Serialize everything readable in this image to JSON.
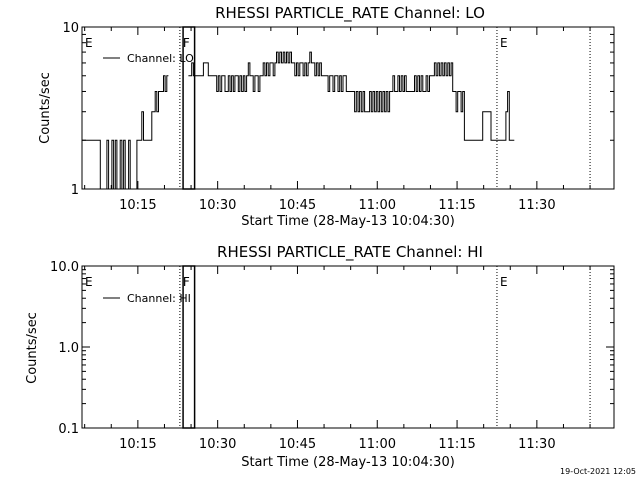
{
  "chart_data": [
    {
      "type": "line",
      "title": "RHESSI PARTICLE_RATE Channel: LO",
      "xlabel": "Start Time (28-May-13 10:04:30)",
      "ylabel": "Counts/sec",
      "yscale": "log",
      "ylim": [
        1,
        10
      ],
      "ytick_labels": [
        "1",
        "10"
      ],
      "xlim": [
        "10:04:30",
        "11:44:30"
      ],
      "xtick_labels": [
        "10:15",
        "10:30",
        "10:45",
        "11:00",
        "11:15",
        "11:30"
      ],
      "legend": {
        "placement": "top-left",
        "entries": [
          "Channel: LO"
        ]
      },
      "markers": [
        {
          "label": "E",
          "time": "10:04:30",
          "style": "dotted"
        },
        {
          "label": "F",
          "time": "10:22:54",
          "style": "dotted"
        },
        {
          "label": "E",
          "time": "11:22:30",
          "style": "dotted"
        },
        {
          "label": "",
          "time": "11:40:00",
          "style": "dotted"
        }
      ],
      "saa_box": {
        "start": "10:23:30",
        "end": "10:25:40"
      },
      "series": [
        {
          "name": "Channel: LO",
          "x_start": "10:04:30",
          "step_seconds": 18.75,
          "values": [
            2,
            2,
            2,
            2,
            2,
            2,
            2,
            2,
            2,
            2,
            2,
            1,
            1,
            1,
            1,
            2,
            1,
            1,
            2,
            1,
            2,
            1,
            1,
            2,
            1,
            2,
            1,
            1,
            2,
            1,
            1,
            1,
            1,
            2,
            2,
            2,
            3,
            2,
            2,
            2,
            2,
            2,
            3,
            3,
            4,
            3,
            4,
            4,
            4,
            5,
            4,
            5,
            0,
            0,
            0,
            0,
            0,
            0,
            0,
            0,
            0,
            0,
            0,
            0,
            5,
            5,
            6,
            5,
            5,
            5,
            5,
            5,
            5,
            6,
            6,
            6,
            5,
            5,
            5,
            5,
            5,
            4,
            5,
            4,
            5,
            5,
            4,
            4,
            5,
            4,
            5,
            4,
            5,
            5,
            4,
            5,
            4,
            5,
            4,
            5,
            6,
            5,
            5,
            4,
            5,
            5,
            4,
            5,
            5,
            6,
            5,
            6,
            5,
            6,
            6,
            5,
            6,
            7,
            6,
            7,
            6,
            7,
            6,
            7,
            6,
            7,
            6,
            6,
            5,
            6,
            5,
            6,
            6,
            5,
            6,
            5,
            6,
            7,
            6,
            6,
            5,
            6,
            5,
            6,
            5,
            5,
            5,
            5,
            4,
            5,
            5,
            4,
            5,
            5,
            4,
            5,
            4,
            5,
            5,
            4,
            4,
            4,
            4,
            4,
            3,
            4,
            3,
            4,
            3,
            4,
            3,
            3,
            3,
            4,
            3,
            4,
            3,
            4,
            3,
            4,
            3,
            4,
            3,
            4,
            3,
            4,
            4,
            5,
            4,
            4,
            5,
            4,
            5,
            4,
            5,
            4,
            4,
            4,
            4,
            4,
            5,
            4,
            5,
            4,
            5,
            4,
            4,
            5,
            4,
            5,
            5,
            5,
            6,
            5,
            6,
            5,
            6,
            5,
            6,
            5,
            6,
            5,
            6,
            4,
            4,
            3,
            4,
            4,
            3,
            4,
            2,
            2,
            2,
            2,
            2,
            2,
            2,
            2,
            2,
            2,
            2,
            3,
            3,
            3,
            3,
            3,
            2,
            2,
            2,
            2,
            2,
            2,
            2,
            2,
            2,
            3,
            4,
            2,
            2,
            2
          ]
        }
      ]
    },
    {
      "type": "line",
      "title": "RHESSI PARTICLE_RATE Channel: HI",
      "xlabel": "Start Time (28-May-13 10:04:30)",
      "ylabel": "Counts/sec",
      "yscale": "log",
      "ylim": [
        0.1,
        10
      ],
      "ytick_labels": [
        "0.1",
        "1.0",
        "10.0"
      ],
      "xlim": [
        "10:04:30",
        "11:44:30"
      ],
      "xtick_labels": [
        "10:15",
        "10:30",
        "10:45",
        "11:00",
        "11:15",
        "11:30"
      ],
      "legend": {
        "placement": "top-left",
        "entries": [
          "Channel: HI"
        ]
      },
      "markers": [
        {
          "label": "E",
          "time": "10:04:30",
          "style": "dotted"
        },
        {
          "label": "F",
          "time": "10:22:54",
          "style": "dotted"
        },
        {
          "label": "E",
          "time": "11:22:30",
          "style": "dotted"
        },
        {
          "label": "",
          "time": "11:40:00",
          "style": "dotted"
        }
      ],
      "saa_box": {
        "start": "10:23:30",
        "end": "10:25:40"
      },
      "series": [
        {
          "name": "Channel: HI",
          "values": []
        }
      ]
    }
  ],
  "footer": {
    "timestamp": "19-Oct-2021 12:05"
  }
}
